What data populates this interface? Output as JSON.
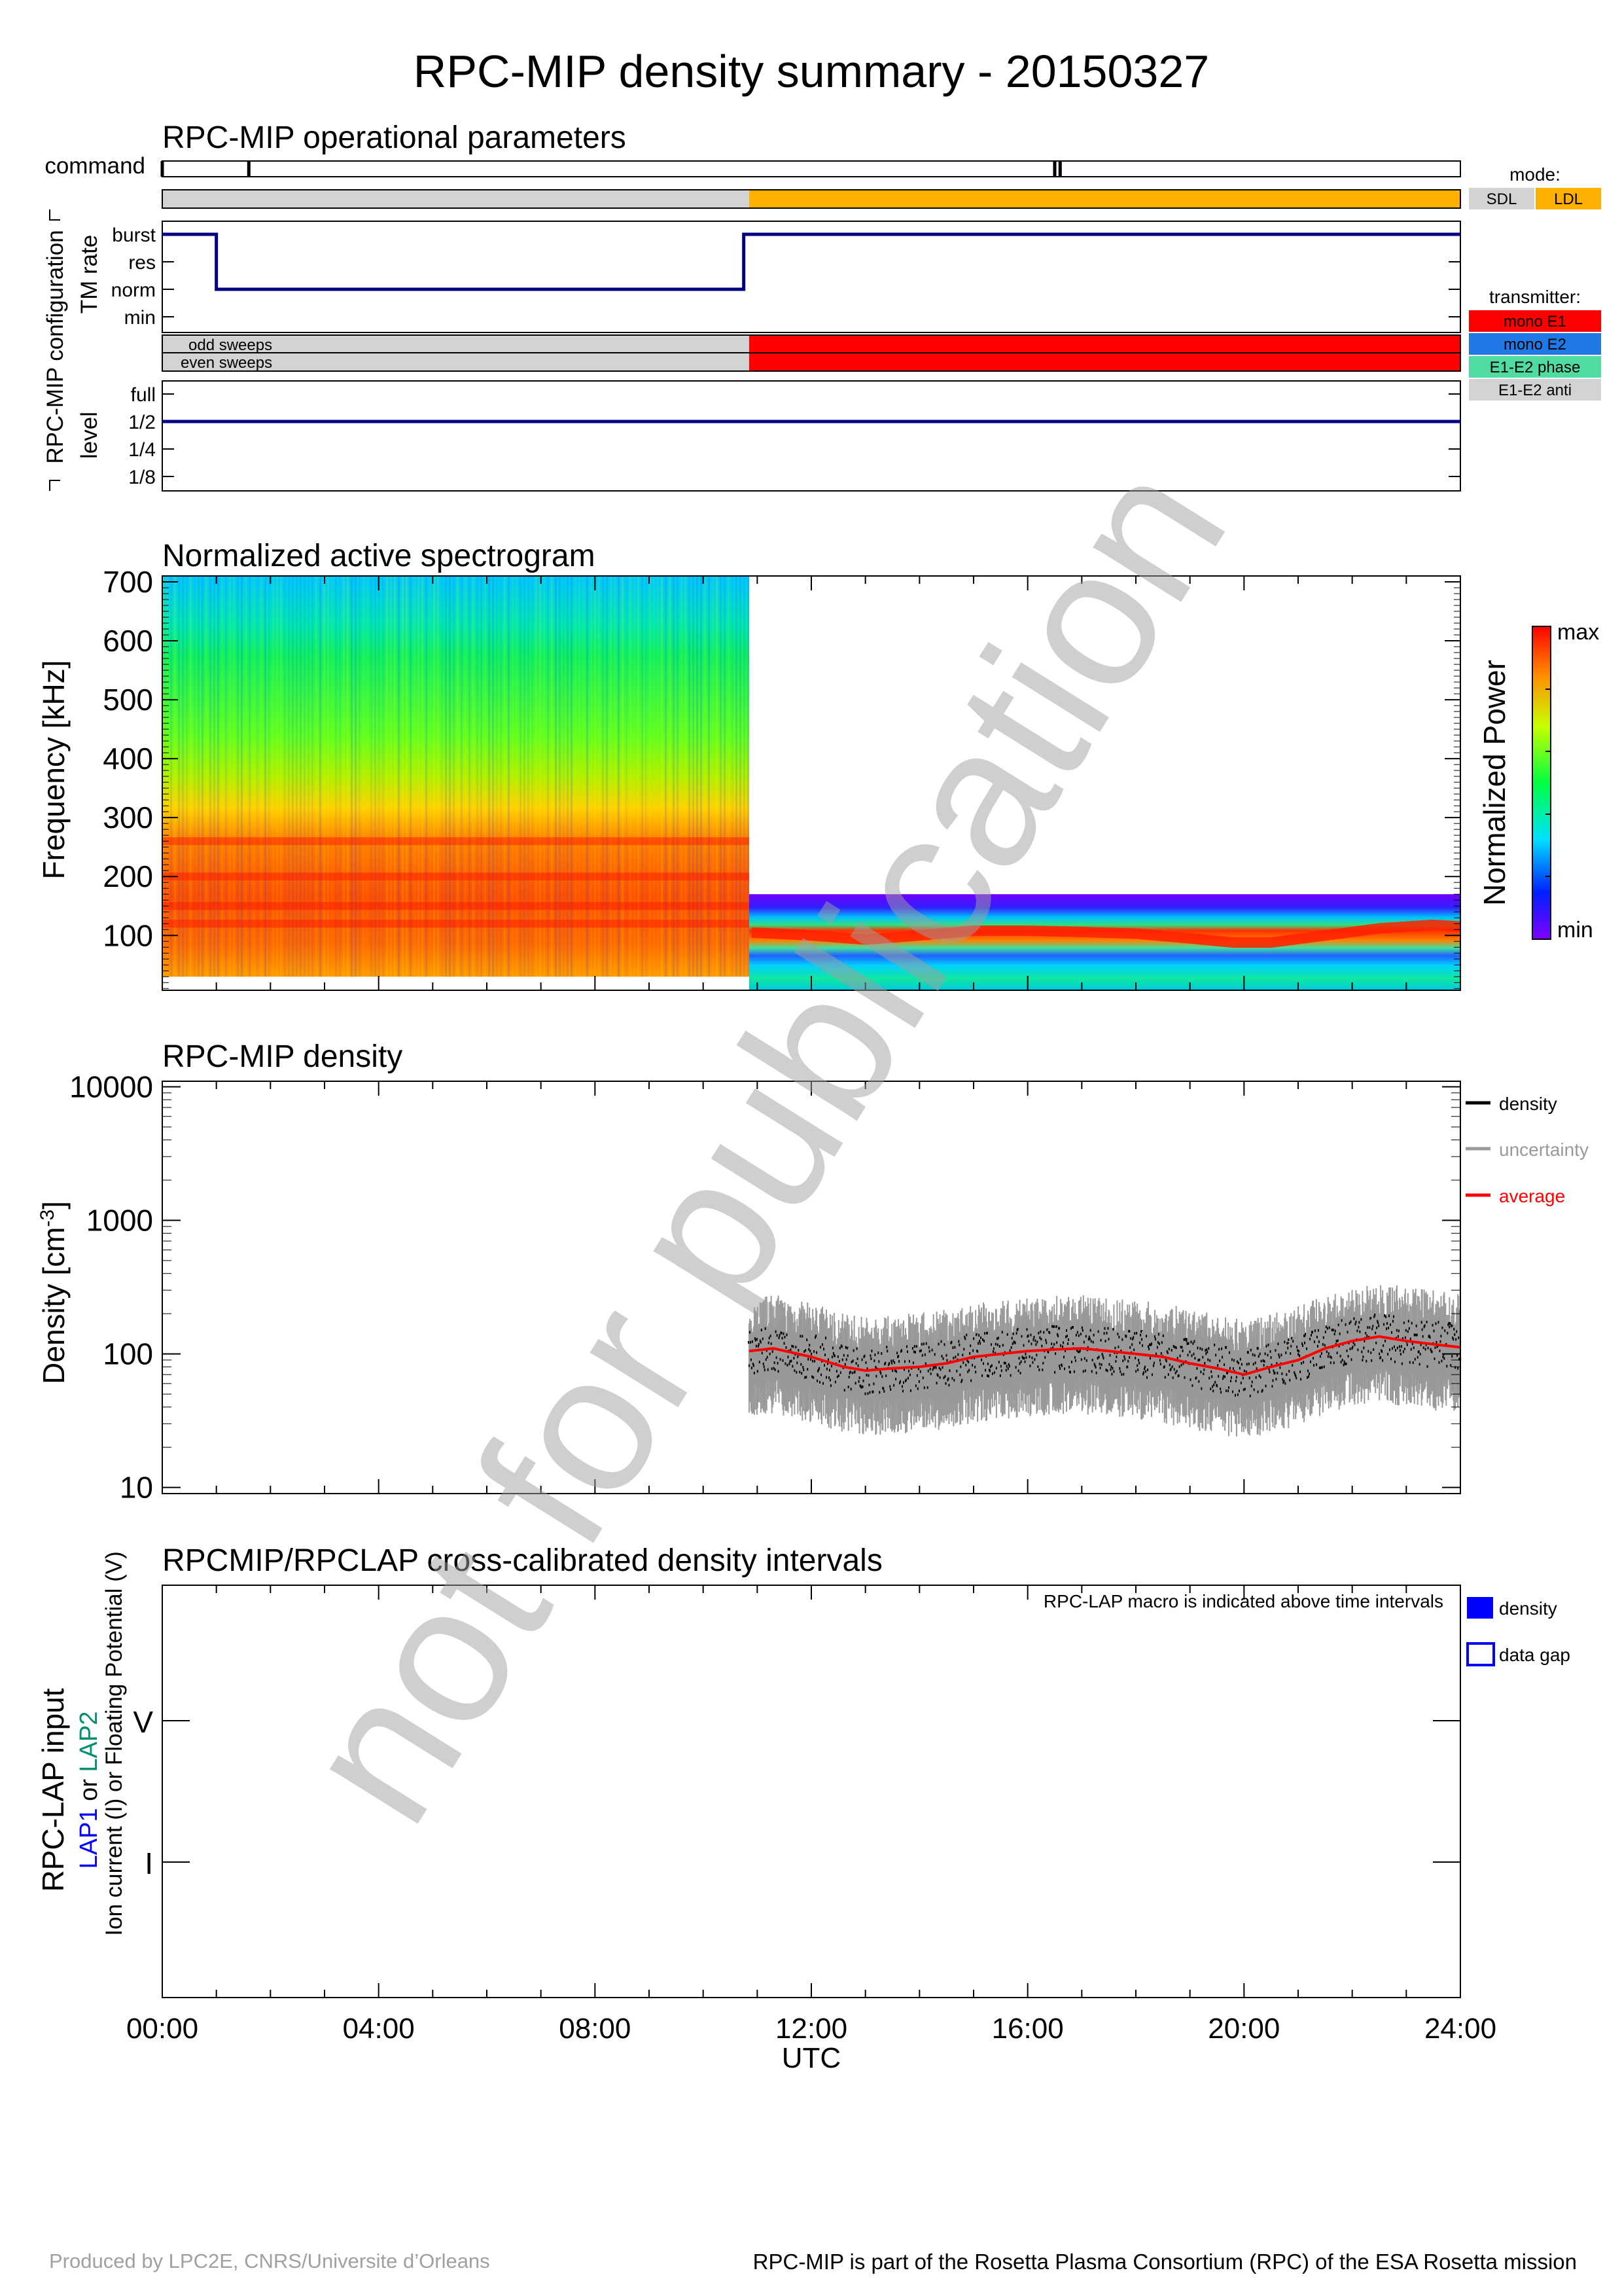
{
  "title": "RPC-MIP density summary - 20150327",
  "watermark": "not for publication",
  "footer": {
    "left": "Produced by LPC2E, CNRS/Universite d’Orleans",
    "right": "RPC-MIP is part of the Rosetta Plasma Consortium (RPC) of the ESA Rosetta mission"
  },
  "colors": {
    "navy": "#000080",
    "sdl": "#d3d3d3",
    "ldl": "#ffb000",
    "mono_e1": "#ff0000",
    "mono_e2": "#1e78e6",
    "e1e2_phase": "#50dca0",
    "e1e2_anti": "#d3d3d3",
    "density": "#000000",
    "uncertainty": "#999999",
    "average": "#ff0000",
    "lap_density": "#0000ff",
    "lap1": "#0000ff",
    "lap2": "#009070"
  },
  "chart_data": [
    {
      "type": "line",
      "panel": "operational",
      "title": "RPC-MIP operational parameters",
      "group_label": "RPC-MIP configuration",
      "command": {
        "label": "command",
        "ticks_h": [
          0.0,
          1.6,
          16.5,
          16.6
        ]
      },
      "mode": {
        "legend_title": "mode:",
        "legend": [
          "SDL",
          "LDL"
        ],
        "segments": [
          {
            "start": 0.0,
            "end": 10.85,
            "mode": "SDL"
          },
          {
            "start": 10.85,
            "end": 24.0,
            "mode": "LDL"
          }
        ]
      },
      "tm_rate": {
        "ylabel": "TM rate",
        "levels": [
          "burst",
          "res",
          "norm",
          "min"
        ],
        "x": [
          0.0,
          1.0,
          1.0,
          10.75,
          10.75,
          24.0
        ],
        "y": [
          "burst",
          "burst",
          "norm",
          "norm",
          "burst",
          "burst"
        ]
      },
      "transmitter": {
        "legend_title": "transmitter:",
        "legend": [
          "mono E1",
          "mono E2",
          "E1-E2 phase",
          "E1-E2 anti"
        ],
        "rows": [
          "odd sweeps",
          "even sweeps"
        ],
        "segments": [
          {
            "start": 0.0,
            "end": 10.85,
            "value": "none"
          },
          {
            "start": 10.85,
            "end": 24.0,
            "value": "mono E1"
          }
        ]
      },
      "level": {
        "ylabel": "level",
        "levels": [
          "full",
          "1/2",
          "1/4",
          "1/8"
        ],
        "x": [
          0.0,
          24.0
        ],
        "y": [
          "1/2",
          "1/2"
        ]
      }
    },
    {
      "type": "heatmap",
      "panel": "spectrogram",
      "title": "Normalized active spectrogram",
      "ylabel": "Frequency [kHz]",
      "yticks": [
        100,
        200,
        300,
        400,
        500,
        600,
        700
      ],
      "ylim": [
        7,
        710
      ],
      "xlim": [
        0,
        24
      ],
      "colorbar": {
        "label": "Normalized Power",
        "max_label": "max",
        "min_label": "min"
      },
      "blocks": [
        {
          "start": 0.0,
          "end": 10.85,
          "fmin": 30,
          "fmax": 710,
          "description": "broadband, high power below 300 kHz"
        },
        {
          "start": 10.85,
          "end": 24.0,
          "fmin": 7,
          "fmax": 170,
          "description": "resonance band near 100 kHz"
        }
      ],
      "resonance_trace": {
        "x": [
          10.9,
          12,
          13,
          14,
          15,
          16,
          17,
          18,
          19,
          19.8,
          20.5,
          21.5,
          22.5,
          23.5,
          24
        ],
        "y": [
          105,
          100,
          93,
          100,
          108,
          108,
          106,
          103,
          95,
          88,
          88,
          100,
          112,
          118,
          115
        ]
      }
    },
    {
      "type": "scatter",
      "panel": "density",
      "title": "RPC-MIP density",
      "ylabel": "Density [cm⁻³]",
      "yscale": "log",
      "yticks": [
        10,
        100,
        1000,
        10000
      ],
      "ylim": [
        9,
        11000
      ],
      "xlim": [
        0,
        24
      ],
      "legend": [
        "density",
        "uncertainty",
        "average"
      ],
      "legend_placement": "right",
      "series": [
        {
          "name": "average",
          "x": [
            10.85,
            11.3,
            12,
            12.6,
            13,
            13.5,
            14,
            14.5,
            15,
            15.5,
            16,
            16.5,
            17,
            17.5,
            18,
            18.5,
            19,
            19.5,
            20,
            20.5,
            21,
            21.5,
            22,
            22.5,
            23,
            23.5,
            24
          ],
          "y": [
            105,
            110,
            95,
            80,
            75,
            78,
            80,
            85,
            95,
            100,
            105,
            108,
            110,
            105,
            100,
            95,
            85,
            78,
            70,
            80,
            90,
            110,
            125,
            135,
            125,
            118,
            112
          ]
        }
      ],
      "scatter_extent": {
        "start": 10.85,
        "end": 24.0,
        "spread_decades": 0.45
      }
    },
    {
      "type": "bar",
      "panel": "lap",
      "title": "RPCMIP/RPCLAP cross-calibrated density intervals",
      "ylabel": "RPC-LAP input",
      "ylabel_sub_prefix": "LAP1",
      "ylabel_sub_or": "or",
      "ylabel_sub_suffix": "LAP2",
      "ylabel_sub2": "Ion current (I) or Floating Potential (V)",
      "yticks": [
        "V",
        "I"
      ],
      "annotation": "RPC-LAP macro is indicated above time intervals",
      "legend": [
        "density",
        "data gap"
      ],
      "intervals": []
    }
  ],
  "x_axis": {
    "ticks": [
      "00:00",
      "04:00",
      "08:00",
      "12:00",
      "16:00",
      "20:00",
      "24:00"
    ],
    "label": "UTC"
  }
}
